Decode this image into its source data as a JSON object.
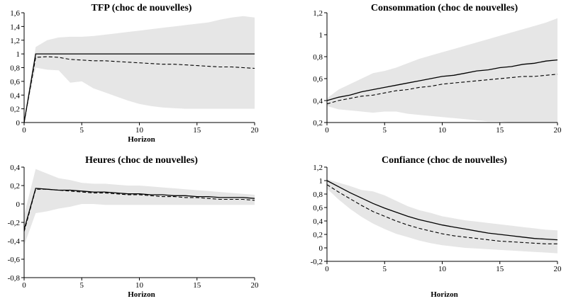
{
  "colors": {
    "band": "#e6e6e6",
    "line": "#000000"
  },
  "chart_data": [
    {
      "type": "line",
      "title": "TFP (choc de nouvelles)",
      "xlabel": "Horizon",
      "ylabel": "",
      "xlim": [
        0,
        20
      ],
      "ylim": [
        0,
        1.6
      ],
      "xticks": [
        0,
        5,
        10,
        15,
        20
      ],
      "yticks": [
        0,
        0.2,
        0.4,
        0.6,
        0.8,
        1,
        1.2,
        1.4,
        1.6
      ],
      "ytick_labels": [
        "0",
        "0,2",
        "0,4",
        "0,6",
        "0,8",
        "1",
        "1,2",
        "1,4",
        "1,6"
      ],
      "x": [
        0,
        1,
        2,
        3,
        4,
        5,
        6,
        7,
        8,
        9,
        10,
        11,
        12,
        13,
        14,
        15,
        16,
        17,
        18,
        19,
        20
      ],
      "band": {
        "lower": [
          0,
          0.8,
          0.77,
          0.76,
          0.58,
          0.6,
          0.5,
          0.44,
          0.38,
          0.32,
          0.27,
          0.24,
          0.22,
          0.21,
          0.2,
          0.2,
          0.2,
          0.2,
          0.2,
          0.2,
          0.2
        ],
        "upper": [
          0,
          1.1,
          1.2,
          1.24,
          1.25,
          1.25,
          1.26,
          1.28,
          1.3,
          1.32,
          1.34,
          1.36,
          1.38,
          1.4,
          1.42,
          1.44,
          1.46,
          1.5,
          1.53,
          1.55,
          1.53
        ]
      },
      "series": [
        {
          "values": [
            0,
            1,
            1,
            1,
            1,
            1,
            1,
            1,
            1,
            1,
            1,
            1,
            1,
            1,
            1,
            1,
            1,
            1,
            1,
            1,
            1
          ]
        },
        {
          "values": [
            0,
            0.95,
            0.96,
            0.95,
            0.92,
            0.91,
            0.9,
            0.9,
            0.89,
            0.88,
            0.87,
            0.86,
            0.85,
            0.85,
            0.84,
            0.83,
            0.82,
            0.81,
            0.81,
            0.8,
            0.79
          ]
        }
      ]
    },
    {
      "type": "line",
      "title": "Consommation (choc de nouvelles)",
      "xlabel": "",
      "ylabel": "",
      "xlim": [
        0,
        20
      ],
      "ylim": [
        0.2,
        1.2
      ],
      "xticks": [
        0,
        5,
        10,
        15,
        20
      ],
      "yticks": [
        0.2,
        0.4,
        0.6,
        0.8,
        1,
        1.2
      ],
      "ytick_labels": [
        "0,2",
        "0,4",
        "0,6",
        "0,8",
        "1",
        "1,2"
      ],
      "x": [
        0,
        1,
        2,
        3,
        4,
        5,
        6,
        7,
        8,
        9,
        10,
        11,
        12,
        13,
        14,
        15,
        16,
        17,
        18,
        19,
        20
      ],
      "band": {
        "lower": [
          0.35,
          0.32,
          0.31,
          0.3,
          0.29,
          0.3,
          0.3,
          0.28,
          0.27,
          0.26,
          0.25,
          0.24,
          0.23,
          0.22,
          0.21,
          0.21,
          0.2,
          0.2,
          0.2,
          0.2,
          0.2
        ],
        "upper": [
          0.42,
          0.5,
          0.55,
          0.6,
          0.65,
          0.67,
          0.7,
          0.74,
          0.78,
          0.81,
          0.84,
          0.87,
          0.9,
          0.93,
          0.96,
          0.99,
          1.02,
          1.05,
          1.08,
          1.11,
          1.15
        ]
      },
      "series": [
        {
          "values": [
            0.4,
            0.43,
            0.45,
            0.48,
            0.5,
            0.52,
            0.54,
            0.56,
            0.58,
            0.6,
            0.62,
            0.63,
            0.65,
            0.67,
            0.68,
            0.7,
            0.71,
            0.73,
            0.74,
            0.76,
            0.77
          ]
        },
        {
          "values": [
            0.37,
            0.4,
            0.42,
            0.44,
            0.45,
            0.47,
            0.49,
            0.5,
            0.52,
            0.53,
            0.55,
            0.56,
            0.57,
            0.58,
            0.59,
            0.6,
            0.61,
            0.62,
            0.62,
            0.63,
            0.64
          ]
        }
      ]
    },
    {
      "type": "line",
      "title": "Heures (choc de nouvelles)",
      "xlabel": "Horizon",
      "ylabel": "",
      "xlim": [
        0,
        20
      ],
      "ylim": [
        -0.8,
        0.4
      ],
      "xticks": [
        0,
        5,
        10,
        15,
        20
      ],
      "yticks": [
        -0.8,
        -0.6,
        -0.4,
        -0.2,
        0,
        0.2,
        0.4
      ],
      "ytick_labels": [
        "-0,8",
        "-0,6",
        "-0,4",
        "-0,2",
        "0",
        "0,2",
        "0,4"
      ],
      "x": [
        0,
        1,
        2,
        3,
        4,
        5,
        6,
        7,
        8,
        9,
        10,
        11,
        12,
        13,
        14,
        15,
        16,
        17,
        18,
        19,
        20
      ],
      "band": {
        "lower": [
          -0.45,
          -0.1,
          -0.08,
          -0.05,
          -0.03,
          0,
          0,
          -0.01,
          -0.01,
          -0.01,
          -0.01,
          -0.01,
          -0.01,
          -0.01,
          -0.01,
          -0.01,
          -0.01,
          -0.01,
          -0.01,
          -0.01,
          -0.01
        ],
        "upper": [
          -0.12,
          0.38,
          0.33,
          0.28,
          0.26,
          0.23,
          0.22,
          0.22,
          0.21,
          0.2,
          0.2,
          0.19,
          0.18,
          0.17,
          0.16,
          0.15,
          0.14,
          0.13,
          0.12,
          0.11,
          0.1
        ]
      },
      "series": [
        {
          "values": [
            -0.28,
            0.17,
            0.16,
            0.15,
            0.15,
            0.14,
            0.13,
            0.13,
            0.12,
            0.11,
            0.11,
            0.1,
            0.1,
            0.09,
            0.09,
            0.08,
            0.08,
            0.07,
            0.07,
            0.07,
            0.06
          ]
        },
        {
          "values": [
            -0.3,
            0.16,
            0.16,
            0.15,
            0.14,
            0.13,
            0.12,
            0.12,
            0.11,
            0.1,
            0.1,
            0.09,
            0.08,
            0.08,
            0.07,
            0.07,
            0.06,
            0.05,
            0.05,
            0.05,
            0.04
          ]
        }
      ]
    },
    {
      "type": "line",
      "title": "Confiance (choc de nouvelles)",
      "xlabel": "Horizon",
      "ylabel": "",
      "xlim": [
        0,
        20
      ],
      "ylim": [
        -0.2,
        1.2
      ],
      "xticks": [
        0,
        5,
        10,
        15,
        20
      ],
      "yticks": [
        -0.2,
        0,
        0.2,
        0.4,
        0.6,
        0.8,
        1,
        1.2
      ],
      "ytick_labels": [
        "-0,2",
        "0",
        "0,2",
        "0,4",
        "0,6",
        "0,8",
        "1",
        "1,2"
      ],
      "x": [
        0,
        1,
        2,
        3,
        4,
        5,
        6,
        7,
        8,
        9,
        10,
        11,
        12,
        13,
        14,
        15,
        16,
        17,
        18,
        19,
        20
      ],
      "band": {
        "lower": [
          0.88,
          0.72,
          0.58,
          0.46,
          0.36,
          0.28,
          0.21,
          0.16,
          0.11,
          0.07,
          0.04,
          0.02,
          0,
          -0.01,
          -0.02,
          -0.03,
          -0.04,
          -0.05,
          -0.06,
          -0.07,
          -0.08
        ],
        "upper": [
          1.02,
          0.97,
          0.92,
          0.86,
          0.84,
          0.78,
          0.7,
          0.62,
          0.56,
          0.52,
          0.47,
          0.44,
          0.41,
          0.39,
          0.37,
          0.35,
          0.33,
          0.31,
          0.29,
          0.27,
          0.26
        ]
      },
      "series": [
        {
          "values": [
            1.0,
            0.91,
            0.82,
            0.74,
            0.66,
            0.59,
            0.53,
            0.47,
            0.42,
            0.38,
            0.34,
            0.31,
            0.28,
            0.25,
            0.22,
            0.2,
            0.18,
            0.16,
            0.14,
            0.13,
            0.12
          ]
        },
        {
          "values": [
            0.94,
            0.83,
            0.73,
            0.63,
            0.54,
            0.47,
            0.4,
            0.34,
            0.29,
            0.25,
            0.21,
            0.18,
            0.16,
            0.14,
            0.12,
            0.1,
            0.09,
            0.08,
            0.07,
            0.06,
            0.06
          ]
        }
      ]
    }
  ]
}
